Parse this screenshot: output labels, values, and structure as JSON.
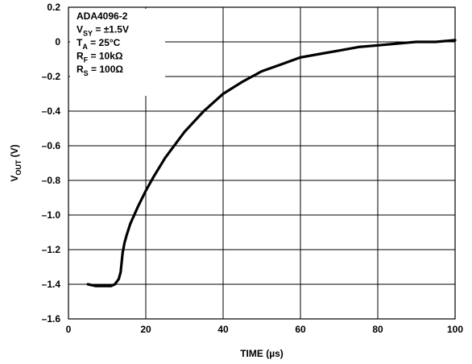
{
  "chart_data": {
    "type": "line",
    "xlabel": "TIME (µs)",
    "ylabel": {
      "main": "V",
      "sub": "OUT",
      "unit": " (V)"
    },
    "xlim": [
      0,
      100
    ],
    "ylim": [
      -1.6,
      0.2
    ],
    "x_ticks": [
      0,
      20,
      40,
      60,
      80,
      100
    ],
    "x_tick_labels": [
      "0",
      "20",
      "40",
      "60",
      "80",
      "100"
    ],
    "y_ticks": [
      0.2,
      0,
      -0.2,
      -0.4,
      -0.6,
      -0.8,
      -1.0,
      -1.2,
      -1.4,
      -1.6
    ],
    "y_tick_labels": [
      "0.2",
      "0",
      "–0.2",
      "–0.4",
      "–0.6",
      "–0.8",
      "–1.0",
      "–1.2",
      "–1.4",
      "–1.6"
    ],
    "grid": true,
    "annotation": [
      {
        "main": "ADA4096-2",
        "sub": "",
        "rest": ""
      },
      {
        "main": "V",
        "sub": "SY",
        "rest": " = ±1.5V"
      },
      {
        "main": "T",
        "sub": "A",
        "rest": " = 25°C"
      },
      {
        "main": "R",
        "sub": "F",
        "rest": " = 10kΩ"
      },
      {
        "main": "R",
        "sub": "S",
        "rest": " = 100Ω"
      }
    ],
    "series": [
      {
        "x": [
          5,
          7,
          9,
          11,
          12,
          13,
          13.5,
          14,
          14.5,
          15,
          16,
          18,
          20,
          22,
          25,
          28,
          30,
          35,
          40,
          45,
          50,
          55,
          60,
          65,
          70,
          75,
          80,
          85,
          90,
          95,
          100
        ],
        "y": [
          -1.4,
          -1.41,
          -1.41,
          -1.41,
          -1.4,
          -1.37,
          -1.33,
          -1.22,
          -1.16,
          -1.12,
          -1.05,
          -0.95,
          -0.86,
          -0.78,
          -0.67,
          -0.58,
          -0.52,
          -0.4,
          -0.3,
          -0.23,
          -0.17,
          -0.13,
          -0.09,
          -0.07,
          -0.05,
          -0.03,
          -0.02,
          -0.01,
          0.0,
          0.0,
          0.01
        ],
        "color": "#000000"
      }
    ]
  }
}
